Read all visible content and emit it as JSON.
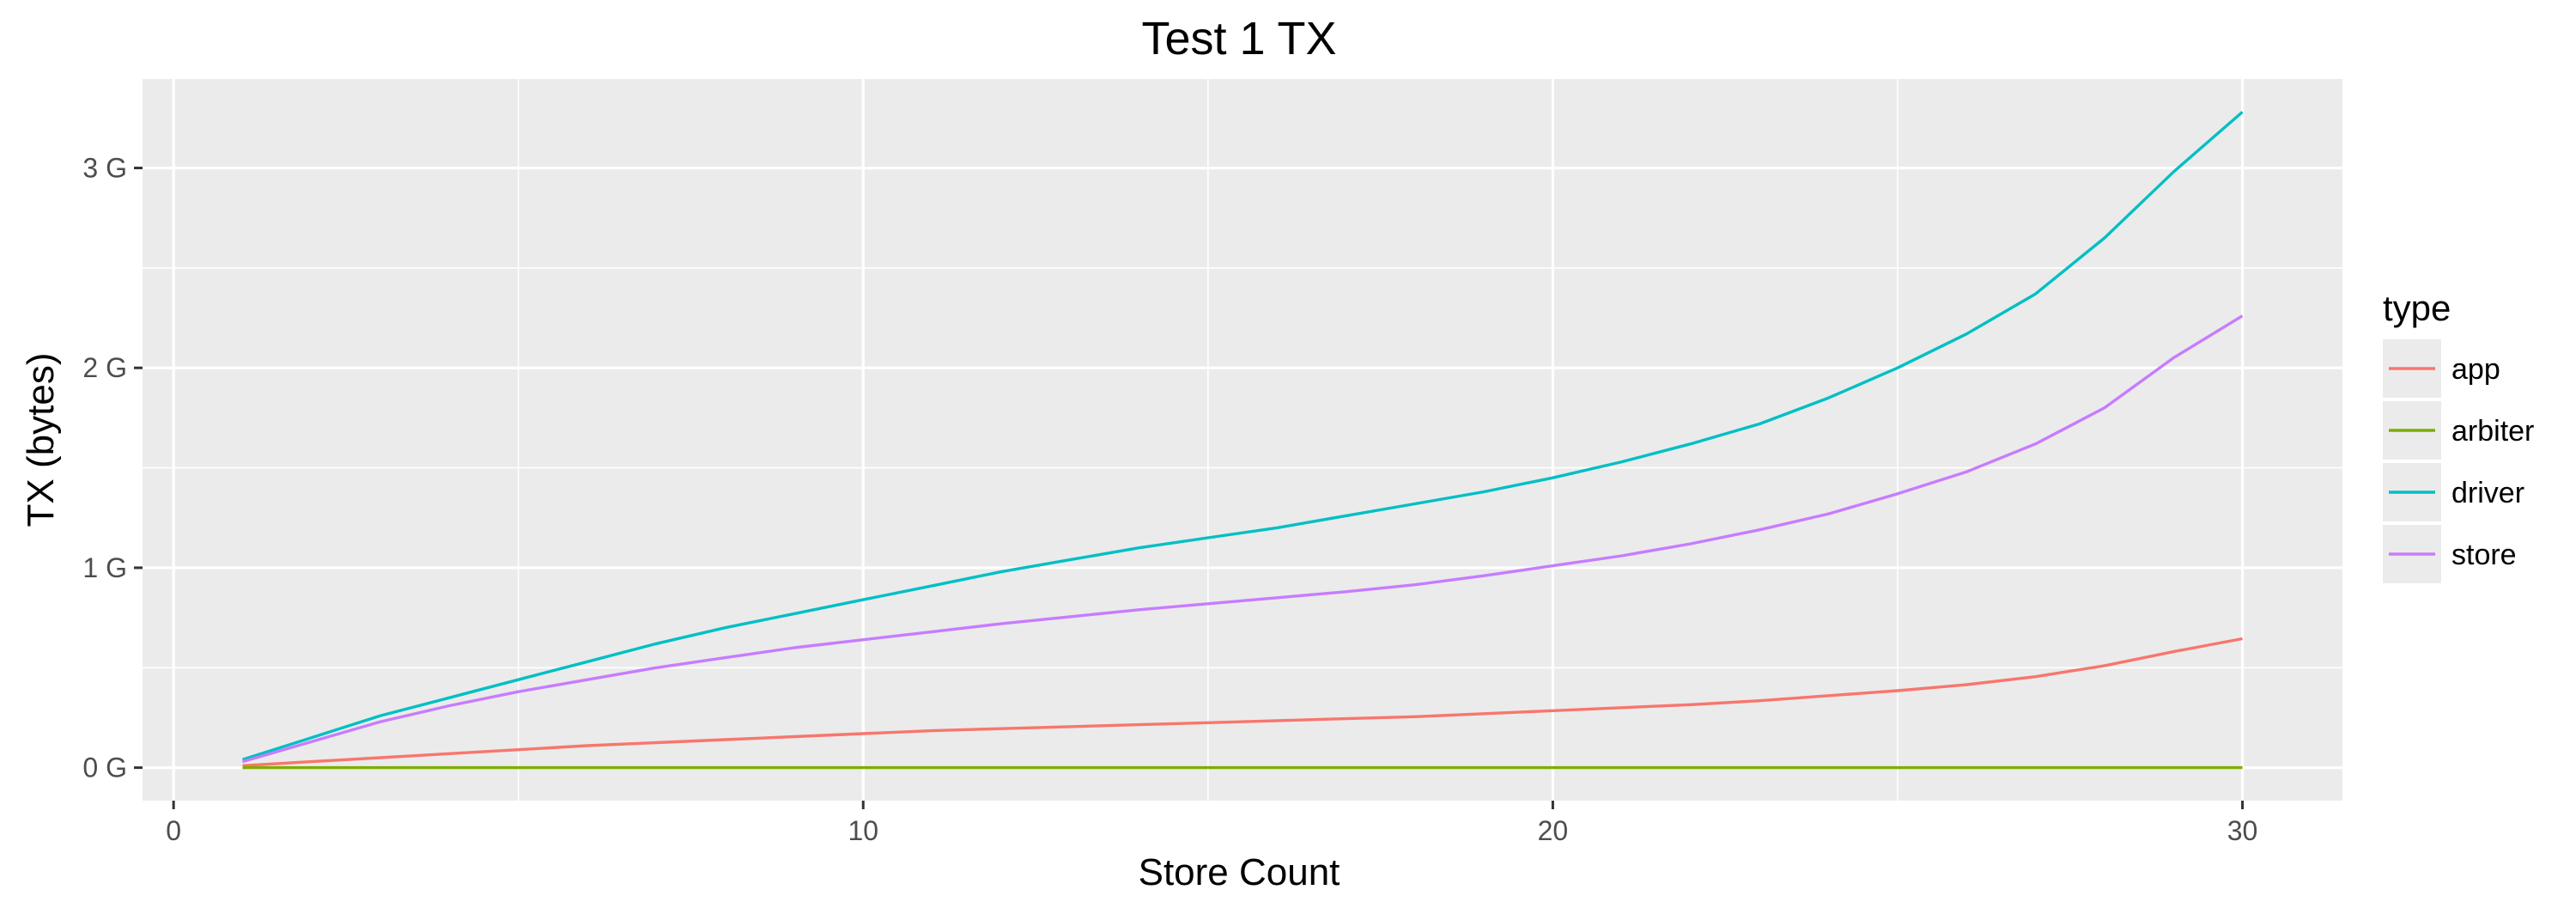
{
  "chart_data": {
    "type": "line",
    "title": "Test 1 TX",
    "xlabel": "Store Count",
    "ylabel": "TX (bytes)",
    "xlim": [
      -0.45,
      31.45
    ],
    "ylim": [
      -0.165,
      3.445
    ],
    "x_ticks": [
      {
        "value": 0,
        "label": "0"
      },
      {
        "value": 10,
        "label": "10"
      },
      {
        "value": 20,
        "label": "20"
      },
      {
        "value": 30,
        "label": "30"
      }
    ],
    "y_ticks": [
      {
        "value": 0,
        "label": "0 G"
      },
      {
        "value": 1,
        "label": "1 G"
      },
      {
        "value": 2,
        "label": "2 G"
      },
      {
        "value": 3,
        "label": "3 G"
      }
    ],
    "grid": true,
    "legend": {
      "title": "type",
      "position": "right"
    },
    "x": [
      1,
      2,
      3,
      4,
      5,
      6,
      7,
      8,
      9,
      10,
      11,
      12,
      13,
      14,
      15,
      16,
      17,
      18,
      19,
      20,
      21,
      22,
      23,
      24,
      25,
      26,
      27,
      28,
      29,
      30
    ],
    "series": [
      {
        "name": "app",
        "color": "#F8766D",
        "values": [
          0.01,
          0.03,
          0.05,
          0.07,
          0.09,
          0.11,
          0.125,
          0.14,
          0.155,
          0.17,
          0.185,
          0.195,
          0.205,
          0.215,
          0.225,
          0.235,
          0.245,
          0.255,
          0.27,
          0.285,
          0.3,
          0.315,
          0.335,
          0.36,
          0.385,
          0.415,
          0.455,
          0.51,
          0.58,
          0.645
        ]
      },
      {
        "name": "arbiter",
        "color": "#7CAE00",
        "values": [
          0,
          0,
          0,
          0,
          0,
          0,
          0,
          0,
          0,
          0,
          0,
          0,
          0,
          0,
          0,
          0,
          0,
          0,
          0,
          0,
          0,
          0,
          0,
          0,
          0,
          0,
          0,
          0,
          0,
          0
        ]
      },
      {
        "name": "driver",
        "color": "#00BFC4",
        "values": [
          0.04,
          0.15,
          0.26,
          0.35,
          0.44,
          0.53,
          0.62,
          0.7,
          0.77,
          0.84,
          0.91,
          0.98,
          1.04,
          1.1,
          1.15,
          1.2,
          1.26,
          1.32,
          1.38,
          1.45,
          1.53,
          1.62,
          1.72,
          1.85,
          2.0,
          2.17,
          2.37,
          2.65,
          2.98,
          3.28
        ]
      },
      {
        "name": "store",
        "color": "#C77CFF",
        "values": [
          0.03,
          0.13,
          0.23,
          0.31,
          0.38,
          0.44,
          0.5,
          0.55,
          0.6,
          0.64,
          0.68,
          0.72,
          0.755,
          0.79,
          0.82,
          0.85,
          0.88,
          0.915,
          0.96,
          1.01,
          1.06,
          1.12,
          1.19,
          1.27,
          1.37,
          1.48,
          1.62,
          1.8,
          2.05,
          2.26
        ]
      }
    ]
  }
}
